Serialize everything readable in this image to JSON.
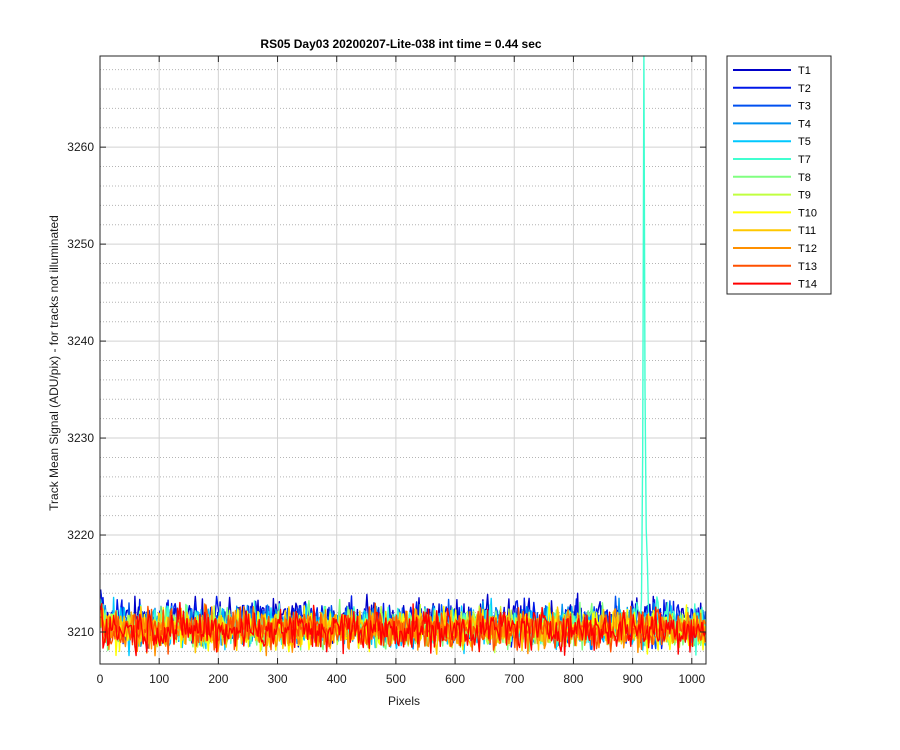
{
  "chart_data": {
    "type": "line",
    "title": "RS05 Day03 20200207-Lite-038 int time = 0.44 sec",
    "xlabel": "Pixels",
    "ylabel": "Track Mean Signal (ADU/pix) - for tracks not illuminated",
    "xlim": [
      0,
      1024
    ],
    "ylim": [
      3206.7,
      3269.4
    ],
    "xticks": [
      "0",
      "100",
      "200",
      "300",
      "400",
      "500",
      "600",
      "700",
      "800",
      "900",
      "1000"
    ],
    "yticks": [
      "3210",
      "3220",
      "3230",
      "3240",
      "3250",
      "3260"
    ],
    "grid": "on (major solid, minor dotted)",
    "legend_placement": "outside-top-right",
    "series": [
      {
        "name": "T1",
        "color": "#0000c8",
        "baseline": 3211.2,
        "noise": 1.1
      },
      {
        "name": "T2",
        "color": "#0018e8",
        "baseline": 3211.0,
        "noise": 1.1
      },
      {
        "name": "T3",
        "color": "#0050f0",
        "baseline": 3210.8,
        "noise": 1.0
      },
      {
        "name": "T4",
        "color": "#0090f0",
        "baseline": 3210.7,
        "noise": 1.0
      },
      {
        "name": "T5",
        "color": "#00c8ff",
        "baseline": 3210.5,
        "noise": 1.1
      },
      {
        "name": "T7",
        "color": "#40ffd0",
        "baseline": 3210.6,
        "noise": 1.0,
        "peak": {
          "x": 919,
          "y": 3270,
          "decay_to": 3220
        }
      },
      {
        "name": "T8",
        "color": "#80ff80",
        "baseline": 3210.4,
        "noise": 1.0
      },
      {
        "name": "T9",
        "color": "#c0ff40",
        "baseline": 3210.4,
        "noise": 1.0
      },
      {
        "name": "T10",
        "color": "#ffff00",
        "baseline": 3210.3,
        "noise": 1.0
      },
      {
        "name": "T11",
        "color": "#ffc800",
        "baseline": 3210.3,
        "noise": 1.0
      },
      {
        "name": "T12",
        "color": "#ff9000",
        "baseline": 3210.2,
        "noise": 1.0
      },
      {
        "name": "T13",
        "color": "#ff5000",
        "baseline": 3210.3,
        "noise": 1.0
      },
      {
        "name": "T14",
        "color": "#ff0000",
        "baseline": 3210.3,
        "noise": 1.1
      }
    ]
  }
}
